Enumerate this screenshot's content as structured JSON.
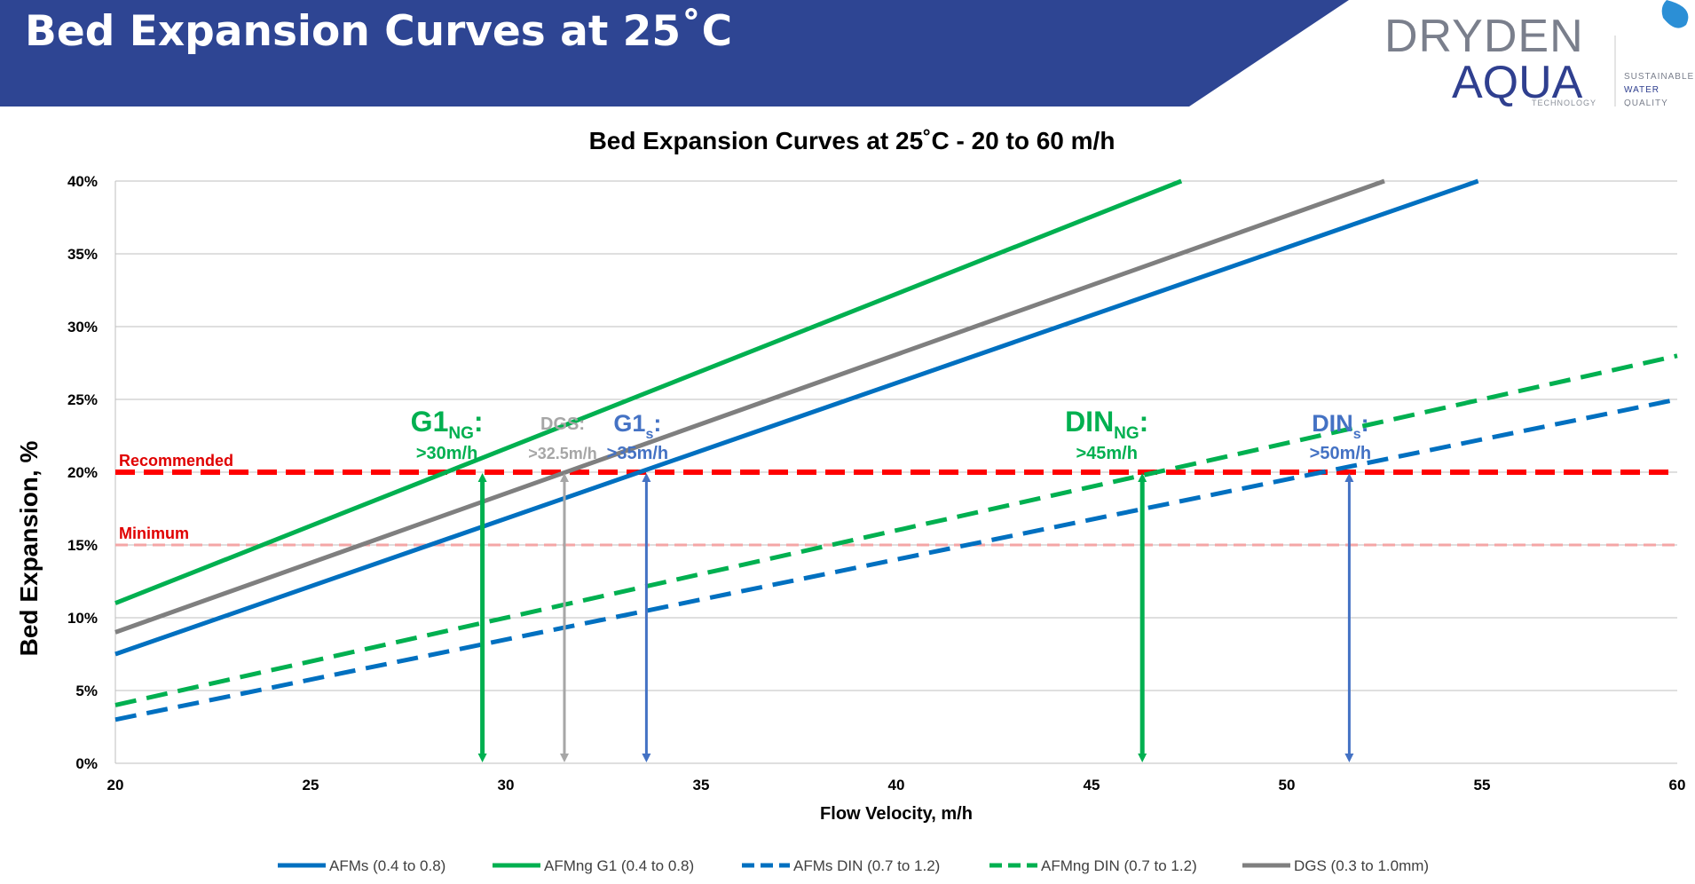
{
  "header": {
    "title": "Bed Expansion Curves at 25˚C",
    "logo": {
      "line1": "DRYDEN",
      "line2": "AQUA",
      "tech": "TECHNOLOGY",
      "tag1": "SUSTAINABLE",
      "tag2": "WATER",
      "tag3": "QUALITY"
    },
    "colors": {
      "banner": "#2e4593",
      "logo_text": "#7a7f8c",
      "logo_blue": "#2f3f8f"
    }
  },
  "chart_data": {
    "type": "line",
    "title": "Bed Expansion Curves at 25˚C  - 20 to 60 m/h",
    "xlabel": "Flow Velocity, m/h",
    "ylabel": "Bed Expansion, %",
    "xlim": [
      20,
      60
    ],
    "ylim": [
      0,
      40
    ],
    "x_ticks": [
      "20",
      "25",
      "30",
      "35",
      "40",
      "45",
      "50",
      "55",
      "60"
    ],
    "y_ticks": [
      "0%",
      "5%",
      "10%",
      "15%",
      "20%",
      "25%",
      "30%",
      "35%",
      "40%"
    ],
    "grid": "horizontal",
    "legend_position": "bottom",
    "series": [
      {
        "name": "AFMs (0.4 to 0.8)",
        "color": "#0070c0",
        "dash": false,
        "x": [
          20,
          54.9
        ],
        "y": [
          7.5,
          40
        ]
      },
      {
        "name": "AFMng G1 (0.4 to 0.8)",
        "color": "#00b050",
        "dash": false,
        "x": [
          20,
          47.3
        ],
        "y": [
          11,
          40
        ]
      },
      {
        "name": "AFMs DIN (0.7 to 1.2)",
        "color": "#0070c0",
        "dash": true,
        "x": [
          20,
          60
        ],
        "y": [
          3,
          25
        ]
      },
      {
        "name": "AFMng DIN (0.7 to 1.2)",
        "color": "#00b050",
        "dash": true,
        "x": [
          20,
          60
        ],
        "y": [
          4,
          28
        ]
      },
      {
        "name": "DGS (0.3 to 1.0mm)",
        "color": "#7f7f7f",
        "dash": false,
        "x": [
          20,
          52.5
        ],
        "y": [
          9,
          40
        ]
      }
    ],
    "reference_lines": [
      {
        "label": "Recommended",
        "y": 20,
        "color": "#ff0000",
        "label_color": "#e00000"
      },
      {
        "label": "Minimum",
        "y": 15,
        "color": "#f4a6a6",
        "label_color": "#e00000"
      }
    ],
    "annotations": [
      {
        "main": "G1",
        "sub": "NG",
        "suffix": ":",
        "value": ">30m/h",
        "x": 29.4,
        "color": "#00b050",
        "size": "large"
      },
      {
        "main": "DGS:",
        "sub": "",
        "suffix": "",
        "value": ">32.5m/h",
        "x": 31.5,
        "color": "#a6a6a6",
        "size": "small"
      },
      {
        "main": "G1",
        "sub": "s",
        "suffix": ":",
        "value": ">35m/h",
        "x": 33.6,
        "color": "#4472c4",
        "size": "medium"
      },
      {
        "main": "DIN",
        "sub": "NG",
        "suffix": ":",
        "value": ">45m/h",
        "x": 46.3,
        "color": "#00b050",
        "size": "large"
      },
      {
        "main": "DIN",
        "sub": "s",
        "suffix": ":",
        "value": ">50m/h",
        "x": 51.6,
        "color": "#4472c4",
        "size": "medium"
      }
    ]
  }
}
